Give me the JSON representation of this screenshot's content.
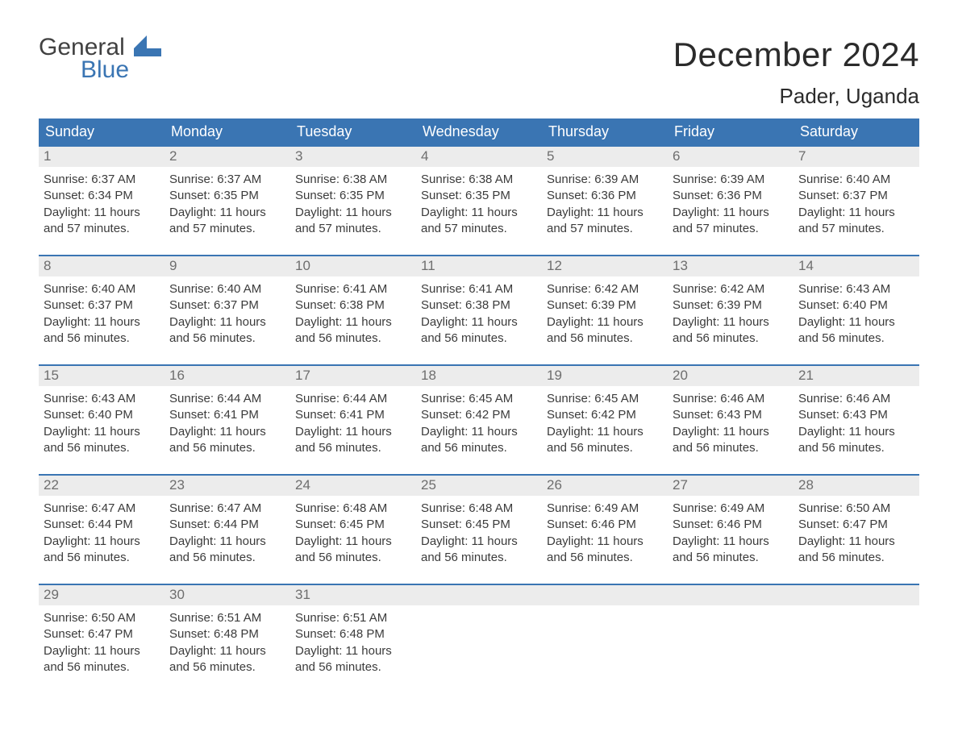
{
  "logo": {
    "word1": "General",
    "word2": "Blue",
    "text_color1": "#414141",
    "text_color2": "#3a75b3",
    "shape_color": "#3a75b3"
  },
  "title": "December 2024",
  "location": "Pader, Uganda",
  "colors": {
    "header_bg": "#3a75b3",
    "header_text": "#ffffff",
    "daynum_bg": "#ececec",
    "daynum_text": "#6e6e6e",
    "body_text": "#3b3b3b",
    "week_border": "#3a75b3",
    "page_bg": "#ffffff"
  },
  "typography": {
    "title_fontsize": 42,
    "location_fontsize": 26,
    "weekday_fontsize": 18,
    "daynum_fontsize": 17,
    "body_fontsize": 15
  },
  "weekdays": [
    "Sunday",
    "Monday",
    "Tuesday",
    "Wednesday",
    "Thursday",
    "Friday",
    "Saturday"
  ],
  "labels": {
    "sunrise": "Sunrise:",
    "sunset": "Sunset:",
    "daylight": "Daylight:"
  },
  "weeks": [
    [
      {
        "d": "1",
        "sunrise": "6:37 AM",
        "sunset": "6:34 PM",
        "daylight": "11 hours and 57 minutes."
      },
      {
        "d": "2",
        "sunrise": "6:37 AM",
        "sunset": "6:35 PM",
        "daylight": "11 hours and 57 minutes."
      },
      {
        "d": "3",
        "sunrise": "6:38 AM",
        "sunset": "6:35 PM",
        "daylight": "11 hours and 57 minutes."
      },
      {
        "d": "4",
        "sunrise": "6:38 AM",
        "sunset": "6:35 PM",
        "daylight": "11 hours and 57 minutes."
      },
      {
        "d": "5",
        "sunrise": "6:39 AM",
        "sunset": "6:36 PM",
        "daylight": "11 hours and 57 minutes."
      },
      {
        "d": "6",
        "sunrise": "6:39 AM",
        "sunset": "6:36 PM",
        "daylight": "11 hours and 57 minutes."
      },
      {
        "d": "7",
        "sunrise": "6:40 AM",
        "sunset": "6:37 PM",
        "daylight": "11 hours and 57 minutes."
      }
    ],
    [
      {
        "d": "8",
        "sunrise": "6:40 AM",
        "sunset": "6:37 PM",
        "daylight": "11 hours and 56 minutes."
      },
      {
        "d": "9",
        "sunrise": "6:40 AM",
        "sunset": "6:37 PM",
        "daylight": "11 hours and 56 minutes."
      },
      {
        "d": "10",
        "sunrise": "6:41 AM",
        "sunset": "6:38 PM",
        "daylight": "11 hours and 56 minutes."
      },
      {
        "d": "11",
        "sunrise": "6:41 AM",
        "sunset": "6:38 PM",
        "daylight": "11 hours and 56 minutes."
      },
      {
        "d": "12",
        "sunrise": "6:42 AM",
        "sunset": "6:39 PM",
        "daylight": "11 hours and 56 minutes."
      },
      {
        "d": "13",
        "sunrise": "6:42 AM",
        "sunset": "6:39 PM",
        "daylight": "11 hours and 56 minutes."
      },
      {
        "d": "14",
        "sunrise": "6:43 AM",
        "sunset": "6:40 PM",
        "daylight": "11 hours and 56 minutes."
      }
    ],
    [
      {
        "d": "15",
        "sunrise": "6:43 AM",
        "sunset": "6:40 PM",
        "daylight": "11 hours and 56 minutes."
      },
      {
        "d": "16",
        "sunrise": "6:44 AM",
        "sunset": "6:41 PM",
        "daylight": "11 hours and 56 minutes."
      },
      {
        "d": "17",
        "sunrise": "6:44 AM",
        "sunset": "6:41 PM",
        "daylight": "11 hours and 56 minutes."
      },
      {
        "d": "18",
        "sunrise": "6:45 AM",
        "sunset": "6:42 PM",
        "daylight": "11 hours and 56 minutes."
      },
      {
        "d": "19",
        "sunrise": "6:45 AM",
        "sunset": "6:42 PM",
        "daylight": "11 hours and 56 minutes."
      },
      {
        "d": "20",
        "sunrise": "6:46 AM",
        "sunset": "6:43 PM",
        "daylight": "11 hours and 56 minutes."
      },
      {
        "d": "21",
        "sunrise": "6:46 AM",
        "sunset": "6:43 PM",
        "daylight": "11 hours and 56 minutes."
      }
    ],
    [
      {
        "d": "22",
        "sunrise": "6:47 AM",
        "sunset": "6:44 PM",
        "daylight": "11 hours and 56 minutes."
      },
      {
        "d": "23",
        "sunrise": "6:47 AM",
        "sunset": "6:44 PM",
        "daylight": "11 hours and 56 minutes."
      },
      {
        "d": "24",
        "sunrise": "6:48 AM",
        "sunset": "6:45 PM",
        "daylight": "11 hours and 56 minutes."
      },
      {
        "d": "25",
        "sunrise": "6:48 AM",
        "sunset": "6:45 PM",
        "daylight": "11 hours and 56 minutes."
      },
      {
        "d": "26",
        "sunrise": "6:49 AM",
        "sunset": "6:46 PM",
        "daylight": "11 hours and 56 minutes."
      },
      {
        "d": "27",
        "sunrise": "6:49 AM",
        "sunset": "6:46 PM",
        "daylight": "11 hours and 56 minutes."
      },
      {
        "d": "28",
        "sunrise": "6:50 AM",
        "sunset": "6:47 PM",
        "daylight": "11 hours and 56 minutes."
      }
    ],
    [
      {
        "d": "29",
        "sunrise": "6:50 AM",
        "sunset": "6:47 PM",
        "daylight": "11 hours and 56 minutes."
      },
      {
        "d": "30",
        "sunrise": "6:51 AM",
        "sunset": "6:48 PM",
        "daylight": "11 hours and 56 minutes."
      },
      {
        "d": "31",
        "sunrise": "6:51 AM",
        "sunset": "6:48 PM",
        "daylight": "11 hours and 56 minutes."
      },
      null,
      null,
      null,
      null
    ]
  ]
}
